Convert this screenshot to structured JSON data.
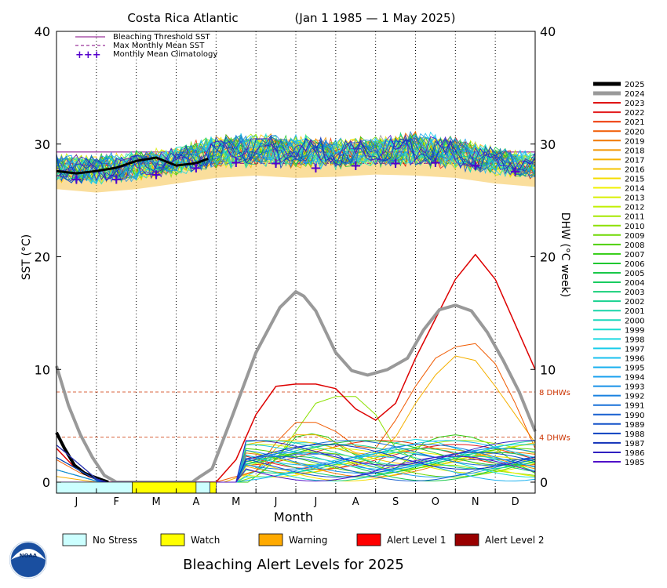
{
  "chart_data": {
    "type": "line",
    "title": "Costa Rica Atlantic",
    "date_range": "(Jan 1 1985 — 1 May 2025)",
    "xlabel": "Month",
    "ylabel_left": "SST (°C)",
    "ylabel_right": "DHW (°C week)",
    "ylim": [
      0,
      40
    ],
    "yticks": [
      0,
      10,
      20,
      30,
      40
    ],
    "month_labels": [
      "J",
      "F",
      "M",
      "A",
      "M",
      "J",
      "J",
      "A",
      "S",
      "O",
      "N",
      "D"
    ],
    "grid": "dotted vertical month lines",
    "legend_placement": "top-left inside plot",
    "legend": [
      {
        "name": "Bleaching Threshold SST",
        "color": "#800080",
        "style": "solid"
      },
      {
        "name": "Max Monthly Mean SST",
        "color": "#800080",
        "style": "dashed"
      },
      {
        "name": "Monthly Mean Climatology",
        "color": "#5500cc",
        "style": "plus"
      }
    ],
    "bleaching_threshold_sst": 29.3,
    "max_monthly_mean_sst": 28.3,
    "climatology": {
      "month": [
        0.5,
        1.5,
        2.5,
        3.5,
        4.5,
        5.5,
        6.5,
        7.5,
        8.5,
        9.5,
        10.5,
        11.5
      ],
      "sst": [
        26.9,
        26.9,
        27.3,
        27.9,
        28.4,
        28.3,
        27.9,
        28.1,
        28.3,
        28.4,
        28.1,
        27.6
      ]
    },
    "dhw_reference_lines": [
      {
        "value": 8,
        "label": "8 DHWs",
        "color": "#cc3300"
      },
      {
        "value": 4,
        "label": "4 DHWs",
        "color": "#cc3300"
      }
    ],
    "sst_band": {
      "month": [
        0,
        1,
        2,
        3,
        4,
        5,
        6,
        7,
        8,
        9,
        10,
        11,
        12
      ],
      "low": [
        26.0,
        25.7,
        26.0,
        26.5,
        27.0,
        27.2,
        27.0,
        27.1,
        27.3,
        27.2,
        27.0,
        26.5,
        26.2
      ],
      "high": [
        28.7,
        28.6,
        28.9,
        29.3,
        30.4,
        30.5,
        30.4,
        30.0,
        30.2,
        30.7,
        30.2,
        29.3,
        28.8
      ]
    },
    "series": [
      {
        "name": "2025",
        "color": "#000000",
        "width": 4,
        "sst": {
          "month": [
            0,
            0.5,
            1,
            1.5,
            2,
            2.5,
            3,
            3.5,
            3.8
          ],
          "values": [
            27.6,
            27.4,
            27.6,
            27.9,
            28.5,
            28.8,
            28.1,
            28.3,
            28.7
          ]
        },
        "dhw": {
          "month": [
            0,
            0.2,
            0.45,
            0.7,
            0.9,
            1.3
          ],
          "values": [
            4.4,
            3.0,
            1.5,
            0.8,
            0.5,
            0
          ]
        }
      },
      {
        "name": "2024",
        "color": "#999999",
        "width": 4,
        "dhw": {
          "month": [
            0,
            0.3,
            0.6,
            0.9,
            1.2,
            1.5,
            3.4,
            3.6,
            3.9,
            4.4,
            5.0,
            5.6,
            6.0,
            6.2,
            6.5,
            7.0,
            7.4,
            7.8,
            8.3,
            8.8,
            9.2,
            9.6,
            10.0,
            10.4,
            10.8,
            11.2,
            11.6,
            12.0
          ],
          "values": [
            10.3,
            6.8,
            4.2,
            2.2,
            0.6,
            0,
            0,
            0.5,
            1.2,
            5.8,
            11.5,
            15.5,
            16.9,
            16.5,
            15.2,
            11.5,
            9.9,
            9.5,
            10.0,
            11.0,
            13.5,
            15.3,
            15.7,
            15.2,
            13.3,
            10.8,
            8.0,
            4.5
          ]
        }
      },
      {
        "name": "2023",
        "color": "#dd0000",
        "width": 1.5,
        "dhw": {
          "month": [
            0,
            0.4,
            0.8,
            1.2,
            4.0,
            4.5,
            5.0,
            5.5,
            6.0,
            6.5,
            7.0,
            7.5,
            8.0,
            8.5,
            9.0,
            9.5,
            10.0,
            10.5,
            11.0,
            11.5,
            12.0
          ],
          "values": [
            3.0,
            1.5,
            0.5,
            0,
            0,
            2.0,
            6.0,
            8.5,
            8.7,
            8.7,
            8.3,
            6.5,
            5.5,
            7.0,
            11.0,
            14.5,
            18.0,
            20.2,
            18.0,
            14.0,
            10.0
          ]
        }
      },
      {
        "name": "2022",
        "color": "#e31a1c",
        "width": 1
      },
      {
        "name": "2021",
        "color": "#ee3300",
        "width": 1
      },
      {
        "name": "2020",
        "color": "#f05a00",
        "width": 1,
        "dhw": {
          "month": [
            0,
            0.6,
            1.2,
            4.0,
            5.0,
            5.5,
            6.0,
            6.5,
            7.0,
            7.5,
            8.0,
            8.5,
            9.0,
            9.5,
            10.0,
            10.5,
            11.0,
            11.5,
            12.0
          ],
          "values": [
            2.0,
            0.8,
            0,
            0,
            1.0,
            3.5,
            5.3,
            5.3,
            4.5,
            3.2,
            3.0,
            5.5,
            8.5,
            11.0,
            12.0,
            12.3,
            10.5,
            7.0,
            3.0
          ]
        }
      },
      {
        "name": "2019",
        "color": "#f07800",
        "width": 1
      },
      {
        "name": "2018",
        "color": "#f29600",
        "width": 1
      },
      {
        "name": "2017",
        "color": "#f5b000",
        "width": 1,
        "dhw": {
          "month": [
            0,
            1.0,
            4.2,
            5.0,
            5.5,
            6.0,
            6.5,
            7.0,
            7.5,
            8.0,
            8.5,
            9.0,
            9.5,
            10.0,
            10.5,
            11.0,
            11.5,
            12.0
          ],
          "values": [
            0.5,
            0,
            0,
            1.0,
            3.0,
            4.2,
            4.2,
            3.5,
            2.6,
            2.4,
            4.0,
            7.0,
            9.5,
            11.2,
            10.8,
            8.5,
            6.0,
            3.5
          ]
        }
      },
      {
        "name": "2016",
        "color": "#f5c400",
        "width": 1
      },
      {
        "name": "2015",
        "color": "#f5dc00",
        "width": 1
      },
      {
        "name": "2014",
        "color": "#f0f000",
        "width": 1
      },
      {
        "name": "2013",
        "color": "#d8ef00",
        "width": 1
      },
      {
        "name": "2012",
        "color": "#c0ef00",
        "width": 1
      },
      {
        "name": "2011",
        "color": "#a6e800",
        "width": 1
      },
      {
        "name": "2010",
        "color": "#8ce000",
        "width": 1,
        "dhw": {
          "month": [
            0,
            4.5,
            5.0,
            5.5,
            6.0,
            6.5,
            7.0,
            7.5,
            8.0,
            8.5,
            9.0,
            9.5,
            10.0,
            10.5,
            11.0,
            11.5,
            12.0
          ],
          "values": [
            0,
            0,
            0.5,
            2.0,
            4.5,
            7.0,
            7.6,
            7.6,
            6.0,
            3.0,
            2.0,
            1.5,
            1.5,
            1.2,
            1.0,
            0.8,
            0.6
          ]
        }
      },
      {
        "name": "2009",
        "color": "#6ed800",
        "width": 1
      },
      {
        "name": "2008",
        "color": "#4ed000",
        "width": 1
      },
      {
        "name": "2007",
        "color": "#30cc10",
        "width": 1,
        "dhw": {
          "month": [
            0,
            4.8,
            5.2,
            5.6,
            6.0,
            6.4,
            6.8,
            7.2,
            7.6,
            8.0,
            8.4,
            8.8,
            9.2,
            9.6,
            10.0,
            10.4,
            10.8,
            11.2,
            11.6,
            12.0
          ],
          "values": [
            0,
            0,
            1.0,
            2.5,
            4.0,
            4.3,
            4.0,
            3.0,
            2.2,
            1.5,
            1.0,
            2.0,
            3.5,
            4.0,
            4.2,
            4.0,
            3.5,
            2.5,
            1.5,
            0.8
          ]
        }
      },
      {
        "name": "2006",
        "color": "#20c830",
        "width": 1
      },
      {
        "name": "2005",
        "color": "#18c848",
        "width": 1
      },
      {
        "name": "2004",
        "color": "#18cc60",
        "width": 1
      },
      {
        "name": "2003",
        "color": "#18cf7a",
        "width": 1
      },
      {
        "name": "2002",
        "color": "#18d290",
        "width": 1
      },
      {
        "name": "2001",
        "color": "#18d5a8",
        "width": 1
      },
      {
        "name": "2000",
        "color": "#18d8bc",
        "width": 1
      },
      {
        "name": "1999",
        "color": "#18dcd0",
        "width": 1
      },
      {
        "name": "1998",
        "color": "#18d8e0",
        "width": 1,
        "dhw": {
          "month": [
            0,
            4.5,
            5.0,
            5.5,
            6.0,
            6.5,
            7.0,
            7.5,
            8.0,
            8.5,
            9.0,
            9.5,
            10.0,
            10.5,
            11.0,
            11.5,
            12.0
          ],
          "values": [
            0,
            0,
            1.0,
            2.5,
            3.5,
            3.5,
            3.0,
            2.5,
            1.5,
            3.5,
            3.8,
            3.6,
            3.0,
            2.5,
            2.0,
            1.5,
            1.0
          ]
        }
      },
      {
        "name": "1997",
        "color": "#18ccea",
        "width": 1
      },
      {
        "name": "1996",
        "color": "#18c0ef",
        "width": 1
      },
      {
        "name": "1995",
        "color": "#18b0ef",
        "width": 1
      },
      {
        "name": "1994",
        "color": "#18a0ef",
        "width": 1
      },
      {
        "name": "1993",
        "color": "#1890e8",
        "width": 1
      },
      {
        "name": "1992",
        "color": "#1880e0",
        "width": 1
      },
      {
        "name": "1991",
        "color": "#1870d8",
        "width": 1
      },
      {
        "name": "1990",
        "color": "#1860d0",
        "width": 1
      },
      {
        "name": "1989",
        "color": "#1050c8",
        "width": 1
      },
      {
        "name": "1988",
        "color": "#0840c0",
        "width": 1,
        "dhw": {
          "month": [
            0,
            4.5,
            5.0,
            5.5,
            6.0,
            6.5,
            7.0,
            7.5,
            8.0,
            8.5,
            9.0,
            9.5,
            10.0,
            10.5,
            11.0,
            11.5,
            12.0
          ],
          "values": [
            0,
            0,
            1.0,
            2.0,
            2.5,
            2.5,
            2.5,
            1.5,
            1.0,
            2.0,
            2.5,
            2.2,
            2.0,
            2.0,
            2.0,
            2.0,
            2.0
          ]
        }
      },
      {
        "name": "1987",
        "color": "#1030b8",
        "width": 1
      },
      {
        "name": "1986",
        "color": "#3020c0",
        "width": 1
      },
      {
        "name": "1985",
        "color": "#5010c8",
        "width": 1
      }
    ],
    "alert_strip": [
      {
        "level": "No Stress",
        "from": 0,
        "to": 1.9
      },
      {
        "level": "Watch",
        "from": 1.9,
        "to": 3.5
      },
      {
        "level": "No Stress",
        "from": 3.5,
        "to": 3.85
      },
      {
        "level": "Watch",
        "from": 3.85,
        "to": 4.0
      }
    ]
  },
  "alert_legend": {
    "title": "Bleaching Alert Levels for 2025",
    "items": [
      {
        "label": "No Stress",
        "color": "#ccffff"
      },
      {
        "label": "Watch",
        "color": "#ffff00"
      },
      {
        "label": "Warning",
        "color": "#ffaa00"
      },
      {
        "label": "Alert Level 1",
        "color": "#ff0000"
      },
      {
        "label": "Alert Level 2",
        "color": "#990000"
      }
    ]
  },
  "logo": {
    "text": "NOAA",
    "icon": "noaa-logo-icon"
  }
}
